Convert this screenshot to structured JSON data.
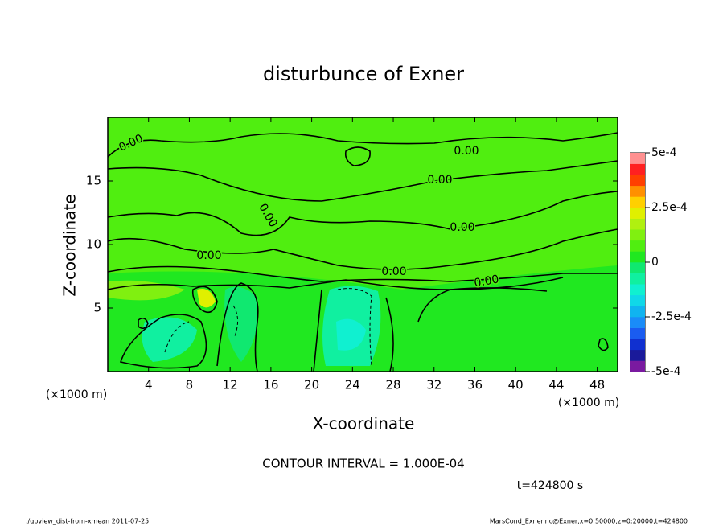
{
  "chart_data": {
    "type": "contour",
    "title": "disturbunce of Exner",
    "xlabel": "X-coordinate",
    "ylabel": "Z-coordinate",
    "xunit": "(×1000 m)",
    "yunit": "(×1000 m)",
    "xlim": [
      0,
      50
    ],
    "xticks": [
      4,
      8,
      12,
      16,
      20,
      24,
      28,
      32,
      36,
      40,
      44,
      48
    ],
    "ylim": [
      0,
      20
    ],
    "yticks": [
      5,
      10,
      15
    ],
    "contour_labels": [
      "0.00",
      "0.00",
      "0.00",
      "0.00",
      "0.00",
      "0.00",
      "0.00",
      "0.00"
    ],
    "colorbar_lim": [
      -0.0005,
      0.0005
    ],
    "colorbar_ticks": [
      {
        "value": 0.0005,
        "label": "5e-4"
      },
      {
        "value": 0.00025,
        "label": "2.5e-4"
      },
      0,
      {
        "value": -0.00025,
        "label": "-2.5e-4"
      },
      {
        "value": -0.0005,
        "label": "-5e-4"
      }
    ],
    "colorbar_colors": [
      "#7a1aa0",
      "#1a1a9a",
      "#1030d0",
      "#1a5cf0",
      "#1a8cf8",
      "#10b4f0",
      "#10d8e8",
      "#10f0d0",
      "#10f0a0",
      "#10e870",
      "#20e820",
      "#50ee10",
      "#80f010",
      "#b0f010",
      "#e0f000",
      "#ffd000",
      "#ff9000",
      "#ff4000",
      "#ff2020",
      "#ff9090"
    ],
    "annotation": "CONTOUR INTERVAL = 1.000E-04",
    "time_label": "t=424800 s",
    "footer_left": "./gpview_dist-from-xmean  2011-07-25",
    "footer_right": "MarsCond_Exner.nc@Exner,x=0:50000,z=0:20000,t=424800"
  }
}
